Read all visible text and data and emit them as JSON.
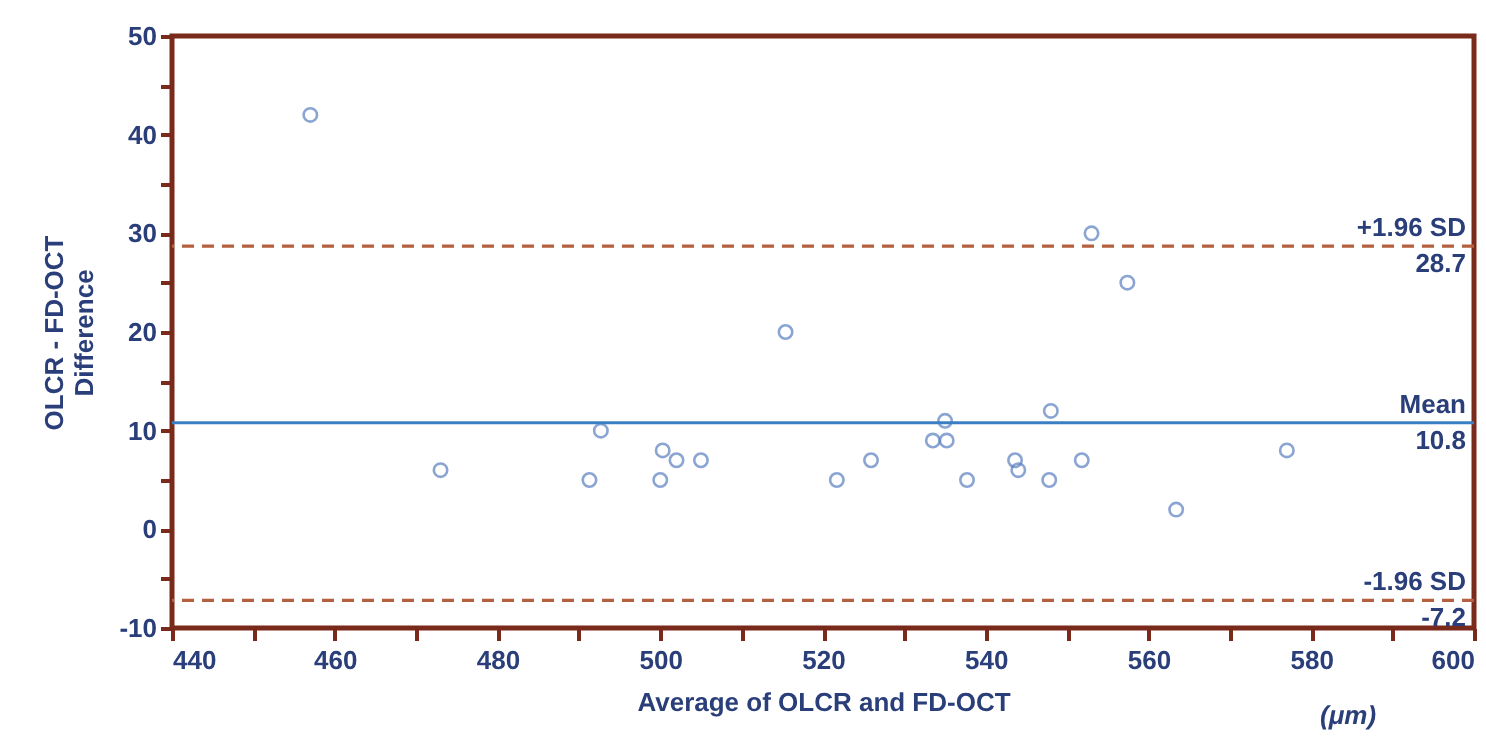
{
  "chart_data": {
    "type": "scatter",
    "xlabel": "Average of OLCR and FD-OCT",
    "ylabel": "OLCR - FD-OCT\nDifference",
    "annotations": [
      "(μm)"
    ],
    "x": [
      457,
      473,
      491.3,
      492.7,
      500.3,
      500,
      502,
      505,
      515.4,
      521.7,
      525.9,
      533.5,
      535.2,
      535,
      537.7,
      543.6,
      544,
      547.8,
      548,
      551.8,
      553,
      557.4,
      563.4,
      577
    ],
    "series": [
      {
        "color": "#5b7fc0",
        "values": [
          42,
          6,
          5,
          10,
          8,
          5,
          7,
          7,
          20,
          5,
          7,
          9,
          9,
          11,
          5,
          7,
          6,
          5,
          12,
          7,
          30,
          25,
          2,
          8
        ]
      }
    ],
    "marker": "circle",
    "grid": false,
    "xlim": [
      440,
      600
    ],
    "xticks": [
      440,
      {
        "value": 450,
        "label": null
      },
      460,
      {
        "value": 470,
        "label": null
      },
      480,
      {
        "value": 490,
        "label": null
      },
      500,
      {
        "value": 510,
        "label": null
      },
      520,
      {
        "value": 530,
        "label": null
      },
      540,
      {
        "value": 550,
        "label": null
      },
      560,
      {
        "value": 570,
        "label": null
      },
      580,
      {
        "value": 590,
        "label": null
      },
      600
    ],
    "ylim": [
      -10,
      50
    ],
    "yticks": [
      -10,
      {
        "value": -5,
        "label": null
      },
      0,
      {
        "value": 5,
        "label": null
      },
      10,
      {
        "value": 15,
        "label": null
      },
      20,
      {
        "value": 25,
        "label": null
      },
      30,
      {
        "value": 35,
        "label": null
      },
      40,
      {
        "value": 45,
        "label": null
      },
      50
    ],
    "ref_lines": [
      {
        "axis": "y",
        "value": 28.7,
        "label": "+1.96 SD\n28.7",
        "color": "#b5603e",
        "line_style": "dashed"
      },
      {
        "axis": "y",
        "value": 10.8,
        "label": "Mean\n10.8",
        "color": "#3a7fc4",
        "line_style": "solid"
      },
      {
        "axis": "y",
        "value": -7.2,
        "label": "-1.96 SD\n-7.2",
        "color": "#b5603e",
        "line_style": "dashed"
      }
    ]
  }
}
